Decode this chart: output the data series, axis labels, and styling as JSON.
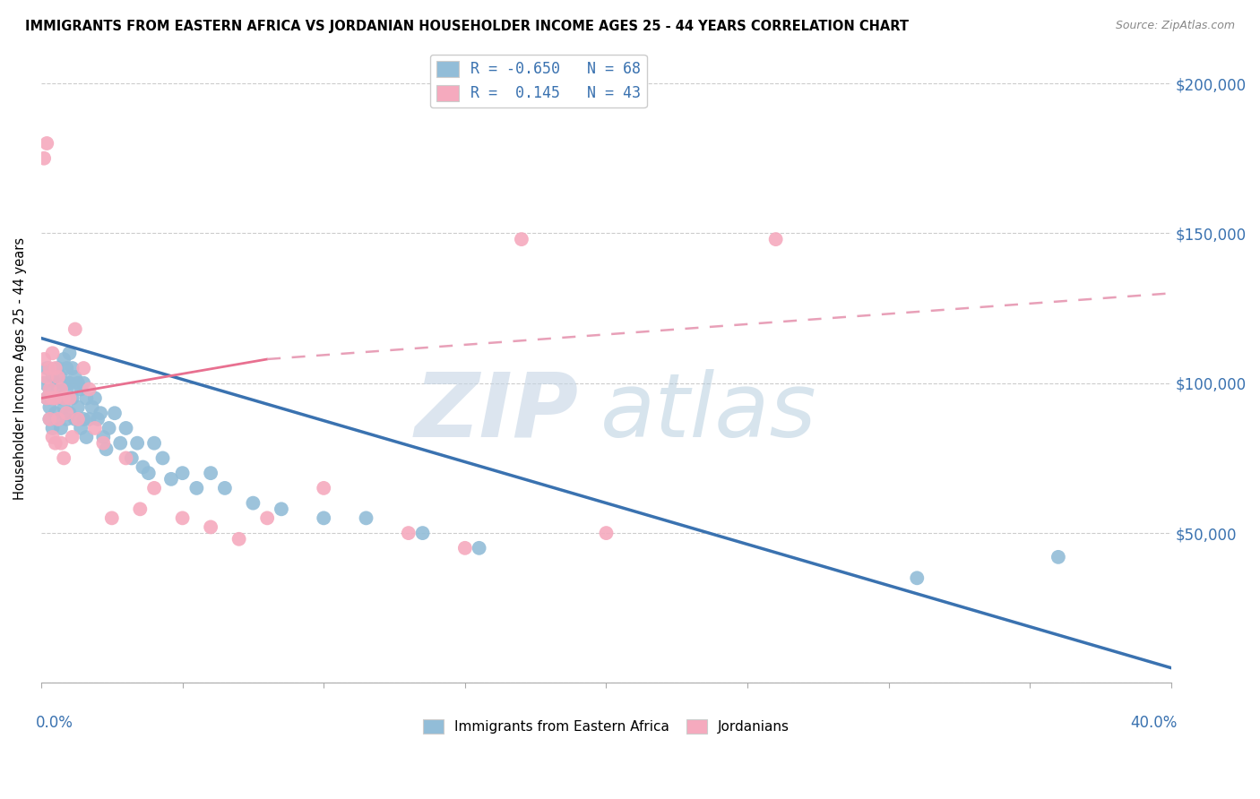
{
  "title": "IMMIGRANTS FROM EASTERN AFRICA VS JORDANIAN HOUSEHOLDER INCOME AGES 25 - 44 YEARS CORRELATION CHART",
  "source": "Source: ZipAtlas.com",
  "ylabel": "Householder Income Ages 25 - 44 years",
  "xlim": [
    0.0,
    0.4
  ],
  "ylim": [
    0,
    210000
  ],
  "yticks": [
    0,
    50000,
    100000,
    150000,
    200000
  ],
  "ytick_labels": [
    "",
    "$50,000",
    "$100,000",
    "$150,000",
    "$200,000"
  ],
  "xticks": [
    0.0,
    0.05,
    0.1,
    0.15,
    0.2,
    0.25,
    0.3,
    0.35,
    0.4
  ],
  "blue_R": -0.65,
  "blue_N": 68,
  "pink_R": 0.145,
  "pink_N": 43,
  "blue_color": "#92BDD8",
  "pink_color": "#F5AABE",
  "blue_line_color": "#3A72B0",
  "pink_line_solid_color": "#E87090",
  "pink_line_dash_color": "#E8A0B8",
  "watermark_zip": "ZIP",
  "watermark_atlas": "atlas",
  "legend_blue_label": "Immigrants from Eastern Africa",
  "legend_pink_label": "Jordanians",
  "blue_line_x0": 0.0,
  "blue_line_y0": 115000,
  "blue_line_x1": 0.4,
  "blue_line_y1": 5000,
  "pink_line_solid_x0": 0.0,
  "pink_line_solid_y0": 95000,
  "pink_line_solid_x1": 0.08,
  "pink_line_solid_y1": 108000,
  "pink_line_dash_x0": 0.08,
  "pink_line_dash_y0": 108000,
  "pink_line_dash_x1": 0.4,
  "pink_line_dash_y1": 130000,
  "blue_scatter_x": [
    0.001,
    0.002,
    0.002,
    0.003,
    0.003,
    0.003,
    0.004,
    0.004,
    0.005,
    0.005,
    0.005,
    0.006,
    0.006,
    0.006,
    0.007,
    0.007,
    0.007,
    0.008,
    0.008,
    0.008,
    0.009,
    0.009,
    0.009,
    0.01,
    0.01,
    0.01,
    0.011,
    0.011,
    0.012,
    0.012,
    0.013,
    0.013,
    0.014,
    0.014,
    0.015,
    0.015,
    0.016,
    0.016,
    0.017,
    0.018,
    0.019,
    0.02,
    0.021,
    0.022,
    0.023,
    0.024,
    0.026,
    0.028,
    0.03,
    0.032,
    0.034,
    0.036,
    0.038,
    0.04,
    0.043,
    0.046,
    0.05,
    0.055,
    0.06,
    0.065,
    0.075,
    0.085,
    0.1,
    0.115,
    0.135,
    0.155,
    0.31,
    0.36
  ],
  "blue_scatter_y": [
    100000,
    105000,
    95000,
    98000,
    92000,
    88000,
    102000,
    85000,
    100000,
    95000,
    90000,
    105000,
    98000,
    88000,
    102000,
    95000,
    85000,
    108000,
    100000,
    92000,
    105000,
    98000,
    88000,
    110000,
    100000,
    90000,
    105000,
    95000,
    102000,
    88000,
    100000,
    92000,
    98000,
    85000,
    100000,
    88000,
    95000,
    82000,
    88000,
    92000,
    95000,
    88000,
    90000,
    82000,
    78000,
    85000,
    90000,
    80000,
    85000,
    75000,
    80000,
    72000,
    70000,
    80000,
    75000,
    68000,
    70000,
    65000,
    70000,
    65000,
    60000,
    58000,
    55000,
    55000,
    50000,
    45000,
    35000,
    42000
  ],
  "pink_scatter_x": [
    0.001,
    0.001,
    0.002,
    0.002,
    0.002,
    0.003,
    0.003,
    0.003,
    0.004,
    0.004,
    0.004,
    0.005,
    0.005,
    0.005,
    0.006,
    0.006,
    0.007,
    0.007,
    0.008,
    0.008,
    0.009,
    0.01,
    0.011,
    0.012,
    0.013,
    0.015,
    0.017,
    0.019,
    0.022,
    0.025,
    0.03,
    0.035,
    0.04,
    0.05,
    0.06,
    0.07,
    0.08,
    0.1,
    0.13,
    0.15,
    0.17,
    0.2,
    0.26
  ],
  "pink_scatter_y": [
    108000,
    175000,
    102000,
    95000,
    180000,
    105000,
    98000,
    88000,
    110000,
    95000,
    82000,
    105000,
    95000,
    80000,
    102000,
    88000,
    98000,
    80000,
    95000,
    75000,
    90000,
    95000,
    82000,
    118000,
    88000,
    105000,
    98000,
    85000,
    80000,
    55000,
    75000,
    58000,
    65000,
    55000,
    52000,
    48000,
    55000,
    65000,
    50000,
    45000,
    148000,
    50000,
    148000
  ]
}
